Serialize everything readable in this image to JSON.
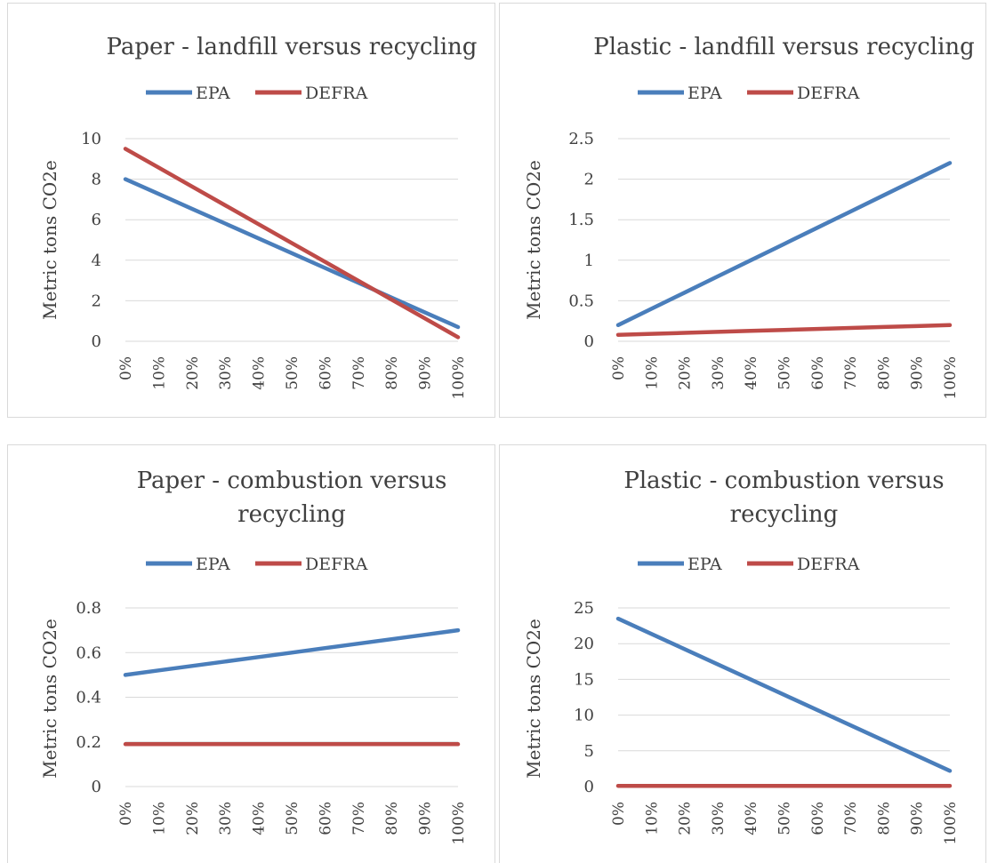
{
  "colors": {
    "EPA": "#4a7ebb",
    "DEFRA": "#be4b48",
    "grid": "#d9d9d9",
    "text": "#404040"
  },
  "chart_data": [
    {
      "type": "line",
      "title": [
        "Paper - landfill versus recycling"
      ],
      "ylabel": "Metric tons CO2e",
      "xlabel": "",
      "categories": [
        "0%",
        "10%",
        "20%",
        "30%",
        "40%",
        "50%",
        "60%",
        "70%",
        "80%",
        "90%",
        "100%"
      ],
      "ylim": [
        0,
        10
      ],
      "yticks": [
        0,
        2,
        4,
        6,
        8,
        10
      ],
      "ytick_labels": [
        "0",
        "2",
        "4",
        "6",
        "8",
        "10"
      ],
      "grid": true,
      "legend": "top",
      "series": [
        {
          "name": "EPA",
          "color": "#4a7ebb",
          "values": [
            8.0,
            7.27,
            6.54,
            5.81,
            5.08,
            4.35,
            3.62,
            2.89,
            2.16,
            1.43,
            0.7
          ]
        },
        {
          "name": "DEFRA",
          "color": "#be4b48",
          "values": [
            9.5,
            8.57,
            7.64,
            6.71,
            5.78,
            4.85,
            3.92,
            2.99,
            2.06,
            1.13,
            0.2
          ]
        }
      ]
    },
    {
      "type": "line",
      "title": [
        "Plastic - landfill versus recycling"
      ],
      "ylabel": "Metric tons CO2e",
      "xlabel": "",
      "categories": [
        "0%",
        "10%",
        "20%",
        "30%",
        "40%",
        "50%",
        "60%",
        "70%",
        "80%",
        "90%",
        "100%"
      ],
      "ylim": [
        0,
        2.5
      ],
      "yticks": [
        0,
        0.5,
        1,
        1.5,
        2,
        2.5
      ],
      "ytick_labels": [
        "0",
        "0.5",
        "1",
        "1.5",
        "2",
        "2.5"
      ],
      "grid": true,
      "legend": "top",
      "series": [
        {
          "name": "EPA",
          "color": "#4a7ebb",
          "values": [
            0.2,
            0.4,
            0.6,
            0.8,
            1.0,
            1.2,
            1.4,
            1.6,
            1.8,
            2.0,
            2.2
          ]
        },
        {
          "name": "DEFRA",
          "color": "#be4b48",
          "values": [
            0.08,
            0.092,
            0.104,
            0.116,
            0.128,
            0.14,
            0.152,
            0.164,
            0.176,
            0.188,
            0.2
          ]
        }
      ]
    },
    {
      "type": "line",
      "title": [
        "Paper - combustion versus",
        "recycling"
      ],
      "ylabel": "Metric tons CO2e",
      "xlabel": "",
      "categories": [
        "0%",
        "10%",
        "20%",
        "30%",
        "40%",
        "50%",
        "60%",
        "70%",
        "80%",
        "90%",
        "100%"
      ],
      "ylim": [
        0,
        0.8
      ],
      "yticks": [
        0,
        0.2,
        0.4,
        0.6,
        0.8
      ],
      "ytick_labels": [
        "0",
        "0.2",
        "0.4",
        "0.6",
        "0.8"
      ],
      "grid": true,
      "legend": "top",
      "series": [
        {
          "name": "EPA",
          "color": "#4a7ebb",
          "values": [
            0.5,
            0.52,
            0.54,
            0.56,
            0.58,
            0.6,
            0.62,
            0.64,
            0.66,
            0.68,
            0.7
          ]
        },
        {
          "name": "DEFRA",
          "color": "#be4b48",
          "values": [
            0.19,
            0.19,
            0.19,
            0.19,
            0.19,
            0.19,
            0.19,
            0.19,
            0.19,
            0.19,
            0.19
          ]
        }
      ]
    },
    {
      "type": "line",
      "title": [
        "Plastic - combustion versus",
        "recycling"
      ],
      "ylabel": "Metric tons CO2e",
      "xlabel": "",
      "categories": [
        "0%",
        "10%",
        "20%",
        "30%",
        "40%",
        "50%",
        "60%",
        "70%",
        "80%",
        "90%",
        "100%"
      ],
      "ylim": [
        0,
        25
      ],
      "yticks": [
        0,
        5,
        10,
        15,
        20,
        25
      ],
      "ytick_labels": [
        "0",
        "5",
        "10",
        "15",
        "20",
        "25"
      ],
      "grid": true,
      "legend": "top",
      "series": [
        {
          "name": "EPA",
          "color": "#4a7ebb",
          "values": [
            23.5,
            21.37,
            19.24,
            17.11,
            14.98,
            12.85,
            10.72,
            8.59,
            6.46,
            4.33,
            2.2
          ]
        },
        {
          "name": "DEFRA",
          "color": "#be4b48",
          "values": [
            0.1,
            0.1,
            0.1,
            0.1,
            0.1,
            0.1,
            0.1,
            0.1,
            0.1,
            0.1,
            0.1
          ]
        }
      ]
    }
  ]
}
